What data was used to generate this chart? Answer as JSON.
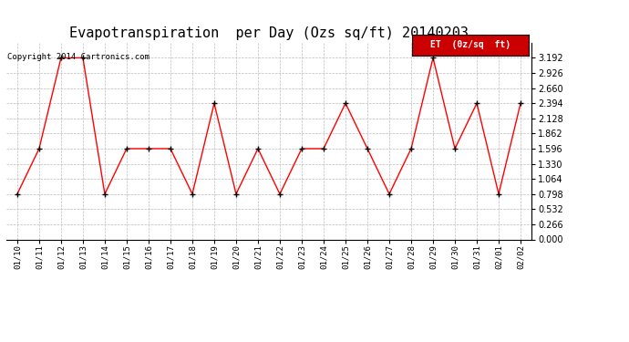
{
  "title": "Evapotranspiration  per Day (Ozs sq/ft) 20140203",
  "copyright": "Copyright 2014 Cartronics.com",
  "legend_label": "ET  (0z/sq  ft)",
  "dates": [
    "01/10",
    "01/11",
    "01/12",
    "01/13",
    "01/14",
    "01/15",
    "01/16",
    "01/17",
    "01/18",
    "01/19",
    "01/20",
    "01/21",
    "01/22",
    "01/23",
    "01/24",
    "01/25",
    "01/26",
    "01/27",
    "01/28",
    "01/29",
    "01/30",
    "01/31",
    "02/01",
    "02/02"
  ],
  "values": [
    0.798,
    1.596,
    3.192,
    3.192,
    0.798,
    1.596,
    1.596,
    1.596,
    0.798,
    2.394,
    0.798,
    1.596,
    0.798,
    1.596,
    1.596,
    2.394,
    1.596,
    0.798,
    1.596,
    3.192,
    1.596,
    2.394,
    0.798,
    2.394
  ],
  "line_color": "red",
  "marker_color": "black",
  "background_color": "#ffffff",
  "grid_color": "#bbbbbb",
  "ylim": [
    0.0,
    3.458
  ],
  "yticks": [
    0.0,
    0.266,
    0.532,
    0.798,
    1.064,
    1.33,
    1.596,
    1.862,
    2.128,
    2.394,
    2.66,
    2.926,
    3.192
  ],
  "title_fontsize": 11,
  "copyright_fontsize": 6.5,
  "legend_bg": "#cc0000",
  "legend_text_color": "#ffffff"
}
